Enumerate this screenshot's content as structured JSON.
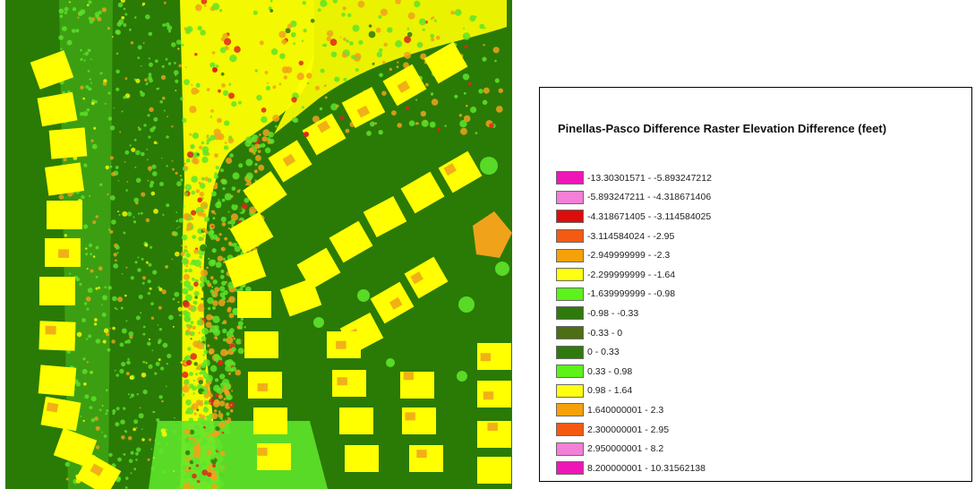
{
  "map": {
    "colors": {
      "background": "#2a7a06",
      "house": "#ffff00",
      "roof_patch": "#f0a21b",
      "vegetation": "#5ee42a",
      "hot_spot": "#e0261a",
      "cool_spot": "#f0a21b"
    }
  },
  "legend": {
    "title": "Pinellas-Pasco Difference Raster Elevation Difference (feet)",
    "items": [
      {
        "label": "-13.30301571 - -5.893247212",
        "color": "#ef16b8"
      },
      {
        "label": "-5.893247211 - -4.318671406",
        "color": "#f37fd6"
      },
      {
        "label": "-4.318671405 - -3.114584025",
        "color": "#dc0d0d"
      },
      {
        "label": "-3.114584024 - -2.95",
        "color": "#f45a12"
      },
      {
        "label": "-2.949999999 - -2.3",
        "color": "#f5a10a"
      },
      {
        "label": "-2.299999999 - -1.64",
        "color": "#ffff12"
      },
      {
        "label": "-1.639999999 - -0.98",
        "color": "#5cf21a"
      },
      {
        "label": "-0.98 - -0.33",
        "color": "#2f7a0c"
      },
      {
        "label": "-0.33 - 0",
        "color": "#4d6e12"
      },
      {
        "label": "0 - 0.33",
        "color": "#2f7a0c"
      },
      {
        "label": "0.33 - 0.98",
        "color": "#5cf21a"
      },
      {
        "label": "0.98 - 1.64",
        "color": "#ffff12"
      },
      {
        "label": "1.640000001 - 2.3",
        "color": "#f5a10a"
      },
      {
        "label": "2.300000001 - 2.95",
        "color": "#f45a12"
      },
      {
        "label": "2.950000001 - 8.2",
        "color": "#f37fd6"
      },
      {
        "label": "8.200000001 - 10.31562138",
        "color": "#ef16b8"
      }
    ]
  }
}
